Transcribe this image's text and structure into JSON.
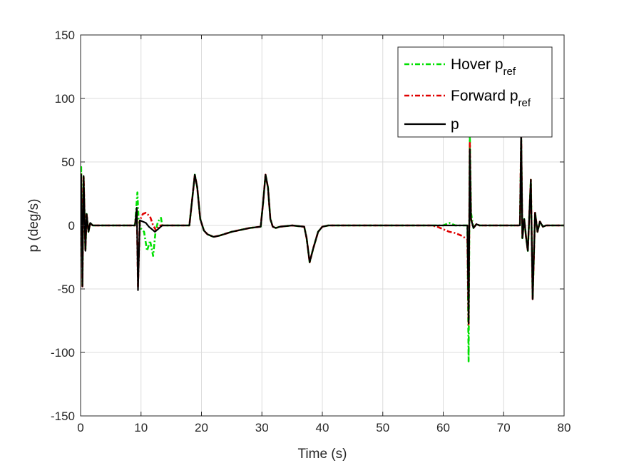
{
  "chart_data": {
    "type": "line",
    "title": "",
    "xlabel": "Time (s)",
    "ylabel": "p (deg/s)",
    "xlim": [
      0,
      80
    ],
    "ylim": [
      -150,
      150
    ],
    "xticks": [
      0,
      10,
      20,
      30,
      40,
      50,
      60,
      70,
      80
    ],
    "yticks": [
      -150,
      -100,
      -50,
      0,
      50,
      100,
      150
    ],
    "xtick_labels": [
      "0",
      "10",
      "20",
      "30",
      "40",
      "50",
      "60",
      "70",
      "80"
    ],
    "ytick_labels": [
      "-150",
      "-100",
      "-50",
      "0",
      "50",
      "100",
      "150"
    ],
    "grid": true,
    "legend_position": "top-right",
    "series": [
      {
        "name": "Hover p",
        "name_sub": "ref",
        "color": "#00e000",
        "dash": "dashdot",
        "x": [
          0,
          0.1,
          0.3,
          0.5,
          0.8,
          1.0,
          1.3,
          1.6,
          2.0,
          2.5,
          3,
          9.0,
          9.4,
          9.6,
          9.9,
          10.5,
          11.0,
          11.5,
          12.0,
          12.4,
          12.8,
          13.3,
          13.5,
          18.0,
          18.5,
          18.9,
          19.3,
          19.8,
          20.4,
          21.0,
          22.0,
          23.0,
          25,
          28,
          29.8,
          30.2,
          30.6,
          31.0,
          31.4,
          31.8,
          32.3,
          33.0,
          35,
          37.0,
          37.4,
          37.9,
          38.5,
          39.3,
          40.0,
          41,
          45,
          50,
          55,
          60.0,
          61,
          62,
          63.5,
          64.0,
          64.2,
          64.4,
          64.6,
          65.0,
          65.5,
          66.0,
          67,
          70,
          72.7,
          72.9,
          73.1,
          73.4,
          73.7,
          74.0,
          74.3,
          74.5,
          74.8,
          75.2,
          75.6,
          76.0,
          76.5,
          77,
          80
        ],
        "values": [
          0,
          46,
          -48,
          39,
          -20,
          9,
          -5,
          2,
          0,
          0,
          0,
          0,
          26,
          5,
          -2,
          -5,
          -20,
          -12,
          -24,
          -5,
          3,
          6,
          0,
          0,
          22,
          40,
          30,
          5,
          -4,
          -7,
          -9,
          -8,
          -5,
          -2,
          -1,
          18,
          40,
          30,
          5,
          -1,
          -2,
          -1,
          0,
          -1,
          -10,
          -29,
          -18,
          -5,
          -1,
          0,
          0,
          0,
          0,
          0,
          2,
          0,
          0,
          0,
          -107,
          73,
          10,
          -2,
          1,
          0,
          0,
          0,
          0,
          68,
          -10,
          5,
          -9,
          -20,
          14,
          36,
          -58,
          10,
          -5,
          3,
          -1,
          0,
          0
        ]
      },
      {
        "name": "Forward p",
        "name_sub": "ref",
        "color": "#e00000",
        "dash": "dashdot",
        "x": [
          0,
          0.1,
          0.3,
          0.5,
          0.8,
          1.0,
          1.3,
          1.6,
          2.0,
          2.5,
          3,
          9.0,
          9.3,
          9.5,
          9.8,
          10.3,
          10.8,
          11.5,
          12.0,
          12.5,
          13.0,
          18.0,
          18.5,
          18.9,
          19.3,
          19.8,
          20.4,
          21.0,
          22.0,
          23.0,
          25,
          28,
          29.8,
          30.2,
          30.6,
          31.0,
          31.4,
          31.8,
          32.3,
          33.0,
          35,
          37.0,
          37.4,
          37.9,
          38.5,
          39.3,
          40.0,
          41,
          45,
          50,
          55,
          58.0,
          59.0,
          60.0,
          61.0,
          62.0,
          63.0,
          64.0,
          64.2,
          64.4,
          64.6,
          65.0,
          65.5,
          66.0,
          67,
          70,
          72.7,
          72.9,
          73.1,
          73.4,
          73.7,
          74.0,
          74.3,
          74.5,
          74.8,
          75.2,
          75.6,
          76.0,
          76.5,
          77,
          80
        ],
        "values": [
          0,
          40,
          -48,
          39,
          -20,
          9,
          -5,
          2,
          0,
          0,
          0,
          0,
          12,
          -48,
          4,
          9,
          10,
          7,
          0,
          -4,
          0,
          0,
          22,
          40,
          30,
          5,
          -4,
          -7,
          -9,
          -8,
          -5,
          -2,
          -1,
          18,
          40,
          30,
          5,
          -1,
          -2,
          -1,
          0,
          -1,
          -10,
          -29,
          -18,
          -5,
          -1,
          0,
          0,
          0,
          0,
          0,
          -1,
          -3,
          -5,
          -6,
          -8,
          -11,
          -78,
          65,
          5,
          -2,
          1,
          0,
          0,
          0,
          0,
          72,
          -10,
          5,
          -9,
          -20,
          14,
          36,
          -58,
          10,
          -5,
          3,
          -1,
          0,
          0
        ]
      },
      {
        "name": "p",
        "name_sub": "",
        "color": "#000000",
        "dash": "solid",
        "x": [
          0,
          0.1,
          0.3,
          0.5,
          0.8,
          1.0,
          1.3,
          1.6,
          2.0,
          2.5,
          3,
          9.0,
          9.3,
          9.5,
          9.8,
          10.3,
          10.8,
          11.3,
          11.8,
          12.3,
          12.8,
          13.5,
          18.0,
          18.5,
          18.9,
          19.3,
          19.8,
          20.4,
          21.0,
          22.0,
          23.0,
          25,
          28,
          29.8,
          30.2,
          30.6,
          31.0,
          31.4,
          31.8,
          32.3,
          33.0,
          35,
          37.0,
          37.4,
          37.9,
          38.5,
          39.3,
          40.0,
          41,
          45,
          50,
          55,
          58,
          64.0,
          64.2,
          64.4,
          64.6,
          65.0,
          65.5,
          66.0,
          67,
          70,
          72.7,
          72.9,
          73.1,
          73.4,
          73.7,
          74.0,
          74.3,
          74.5,
          74.8,
          75.2,
          75.6,
          76.0,
          76.5,
          77,
          80
        ],
        "values": [
          0,
          40,
          -48,
          39,
          -20,
          9,
          -5,
          2,
          0,
          0,
          0,
          0,
          14,
          -51,
          4,
          3,
          2,
          -1,
          -3,
          -5,
          -3,
          0,
          0,
          22,
          40,
          30,
          5,
          -4,
          -7,
          -9,
          -8,
          -5,
          -2,
          -1,
          18,
          40,
          30,
          5,
          -1,
          -2,
          -1,
          0,
          -1,
          -10,
          -29,
          -18,
          -5,
          -1,
          0,
          0,
          0,
          0,
          0,
          0,
          -77,
          60,
          5,
          -2,
          1,
          0,
          0,
          0,
          0,
          75,
          -10,
          5,
          -9,
          -20,
          14,
          36,
          -58,
          10,
          -5,
          3,
          -1,
          0,
          0
        ]
      }
    ]
  }
}
